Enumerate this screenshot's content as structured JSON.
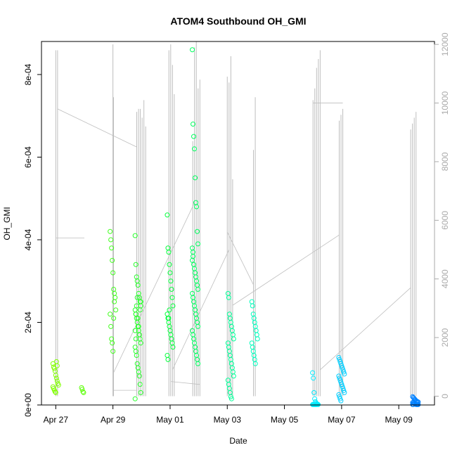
{
  "chart_data": {
    "type": "scatter",
    "title": "ATOM4 Southbound OH_GMI",
    "xlabel": "Date",
    "ylabel": "OH_GMI",
    "x_range": [
      "2018-04-26T12:00",
      "2018-05-10T06:00"
    ],
    "x_ticks": [
      {
        "date": "2018-04-27",
        "label": "Apr 27"
      },
      {
        "date": "2018-04-29",
        "label": "Apr 29"
      },
      {
        "date": "2018-05-01",
        "label": "May 01"
      },
      {
        "date": "2018-05-03",
        "label": "May 03"
      },
      {
        "date": "2018-05-05",
        "label": "May 05"
      },
      {
        "date": "2018-05-07",
        "label": "May 07"
      },
      {
        "date": "2018-05-09",
        "label": "May 09"
      }
    ],
    "ylim": [
      0,
      0.00088
    ],
    "y_ticks": [
      {
        "value": 0,
        "label": "0e+00"
      },
      {
        "value": 0.0002,
        "label": "2e-04"
      },
      {
        "value": 0.0004,
        "label": "4e-04"
      },
      {
        "value": 0.0006,
        "label": "6e-04"
      },
      {
        "value": 0.0008,
        "label": "8e-04"
      }
    ],
    "y2lim": [
      -300,
      12100
    ],
    "y2_ticks": [
      {
        "value": 0,
        "label": "0"
      },
      {
        "value": 2000,
        "label": "2000"
      },
      {
        "value": 4000,
        "label": "4000"
      },
      {
        "value": 6000,
        "label": "6000"
      },
      {
        "value": 8000,
        "label": "8000"
      },
      {
        "value": 10000,
        "label": "10000"
      },
      {
        "value": 12000,
        "label": "12000"
      }
    ],
    "secondary_line_color": "#bebebe",
    "point_color_scale": [
      "#80ff00",
      "#00ff40",
      "#00ffff",
      "#0080ff"
    ],
    "clusters": [
      {
        "date": "2018-04-27",
        "t": "2018-04-27T00:00",
        "values": [
          0.0001,
          9.2e-05,
          8.8e-05,
          8.2e-05,
          7.2e-05,
          6.5e-05,
          5.8e-05,
          5.2e-05,
          4.8e-05,
          4.4e-05,
          4e-05,
          3.6e-05,
          3.2e-05,
          3e-05,
          0.000105,
          9.5e-05
        ]
      },
      {
        "date": "2018-04-28",
        "t": "2018-04-28T00:00",
        "values": [
          4.2e-05,
          3.8e-05,
          3.2e-05,
          3e-05
        ]
      },
      {
        "date": "2018-04-29",
        "t": "2018-04-29T00:00",
        "values": [
          0.00042,
          0.0004,
          0.00038,
          0.00035,
          0.00032,
          0.00028,
          0.00027,
          0.00026,
          0.00023,
          0.00022,
          0.00019,
          0.00016,
          0.00015,
          0.00013,
          0.00021,
          0.00025
        ]
      },
      {
        "date": "2018-04-29",
        "t": "2018-04-29T21:00",
        "values": [
          0.00041,
          0.00034,
          0.00031,
          0.0003,
          0.00029,
          0.00027,
          0.00026,
          0.00025,
          0.00024,
          0.00023,
          0.00022,
          0.00021,
          0.0002,
          0.00019,
          0.00018,
          0.00017,
          0.00016,
          0.00015,
          0.00014,
          0.00013,
          0.00012,
          0.0001,
          9e-05,
          8e-05,
          7e-05,
          5e-05,
          3e-05,
          1.5e-05,
          0.00022,
          0.00024,
          0.00026,
          0.00021,
          0.00019,
          0.00017,
          0.00023,
          0.00025,
          0.00018,
          0.00016
        ]
      },
      {
        "date": "2018-05-01",
        "t": "2018-05-01T00:00",
        "values": [
          0.00046,
          0.00038,
          0.00037,
          0.00034,
          0.00032,
          0.0003,
          0.00028,
          0.00026,
          0.00024,
          0.00022,
          0.00021,
          0.0002,
          0.00019,
          0.00018,
          0.00017,
          0.00016,
          0.00015,
          0.00014,
          0.00012,
          0.00011,
          0.00021,
          0.00023
        ]
      },
      {
        "date": "2018-05-01",
        "t": "2018-05-01T21:00",
        "values": [
          0.00086,
          0.00068,
          0.00065,
          0.00062,
          0.00055,
          0.00049,
          0.00048,
          0.00042,
          0.00039,
          0.00038,
          0.00036,
          0.00034,
          0.00033,
          0.00032,
          0.00031,
          0.0003,
          0.00029,
          0.00028,
          0.00027,
          0.00026,
          0.00025,
          0.00024,
          0.00023,
          0.00022,
          0.00021,
          0.0002,
          0.00019,
          0.00018,
          0.00017,
          0.00016,
          0.00015,
          0.00014,
          0.00013,
          0.00012,
          0.00011,
          0.0001,
          0.00035,
          0.00037
        ]
      },
      {
        "date": "2018-05-03",
        "t": "2018-05-03T03:00",
        "values": [
          0.00027,
          0.00026,
          0.00022,
          0.00021,
          0.0002,
          0.00019,
          0.00018,
          0.00017,
          0.00016,
          0.00015,
          0.00014,
          0.00013,
          0.00012,
          0.00011,
          0.0001,
          9e-05,
          8e-05,
          7e-05,
          6e-05,
          5e-05,
          4e-05,
          3e-05,
          2e-05,
          1.5e-05
        ]
      },
      {
        "date": "2018-05-03",
        "t": "2018-05-03T23:00",
        "values": [
          0.00025,
          0.00024,
          0.00022,
          0.00021,
          0.0002,
          0.00019,
          0.00018,
          0.00017,
          0.00016,
          0.00015,
          0.00014,
          0.00013,
          0.00012,
          0.00011,
          0.0001
        ]
      },
      {
        "date": "2018-05-06",
        "t": "2018-05-06T02:00",
        "values": [
          7.8e-05,
          6.5e-05,
          3e-05,
          1.5e-05,
          8e-06,
          5e-06,
          3e-06,
          2e-06,
          1e-06,
          1e-06,
          1e-06,
          1e-06,
          1e-06,
          1e-06,
          1e-06,
          1e-06
        ]
      },
      {
        "date": "2018-05-07",
        "t": "2018-05-07T00:00",
        "values": [
          0.000115,
          0.00011,
          0.000105,
          0.0001,
          9.5e-05,
          9e-05,
          8.5e-05,
          8e-05,
          7.5e-05,
          7e-05,
          6.5e-05,
          6e-05,
          5.5e-05,
          5e-05,
          4.5e-05,
          4e-05,
          3.5e-05,
          3e-05,
          2.5e-05,
          2e-05,
          1.5e-05,
          1e-05
        ]
      },
      {
        "date": "2018-05-09",
        "t": "2018-05-09T14:00",
        "values": [
          2e-05,
          1.8e-05,
          1.6e-05,
          1.4e-05,
          1.2e-05,
          1e-05,
          9e-06,
          8e-06,
          7e-06,
          6e-06,
          5e-06,
          4e-06,
          3e-06,
          2e-06,
          1e-06,
          1e-06,
          1e-06,
          1e-06,
          1e-06,
          1e-06
        ]
      }
    ],
    "secondary_spikes": [
      {
        "t": "2018-04-27T00:00",
        "value": 11800
      },
      {
        "t": "2018-04-27T01:30",
        "value": 11800
      },
      {
        "t": "2018-04-29T00:00",
        "value": 12000
      },
      {
        "t": "2018-04-29T00:30",
        "value": 10200
      },
      {
        "t": "2018-04-29T20:00",
        "value": 9700
      },
      {
        "t": "2018-04-29T21:30",
        "value": 9800
      },
      {
        "t": "2018-04-29T23:00",
        "value": 9800
      },
      {
        "t": "2018-04-30T00:30",
        "value": 9500
      },
      {
        "t": "2018-04-30T02:00",
        "value": 10100
      },
      {
        "t": "2018-04-30T03:30",
        "value": 9200
      },
      {
        "t": "2018-04-30T23:00",
        "value": 11800
      },
      {
        "t": "2018-05-01T00:30",
        "value": 12000
      },
      {
        "t": "2018-05-01T02:00",
        "value": 11300
      },
      {
        "t": "2018-05-01T03:30",
        "value": 10300
      },
      {
        "t": "2018-05-01T19:00",
        "value": 8700
      },
      {
        "t": "2018-05-01T20:30",
        "value": 11900
      },
      {
        "t": "2018-05-01T22:00",
        "value": 12100
      },
      {
        "t": "2018-05-01T23:30",
        "value": 10500
      },
      {
        "t": "2018-05-02T01:00",
        "value": 10800
      },
      {
        "t": "2018-05-03T00:00",
        "value": 10900
      },
      {
        "t": "2018-05-03T01:30",
        "value": 10700
      },
      {
        "t": "2018-05-03T03:00",
        "value": 11600
      },
      {
        "t": "2018-05-03T04:30",
        "value": 7400
      },
      {
        "t": "2018-05-03T22:00",
        "value": 8400
      },
      {
        "t": "2018-05-03T23:30",
        "value": 10200
      },
      {
        "t": "2018-05-06T00:00",
        "value": 10100
      },
      {
        "t": "2018-05-06T01:30",
        "value": 10500
      },
      {
        "t": "2018-05-06T03:00",
        "value": 11200
      },
      {
        "t": "2018-05-06T04:30",
        "value": 11500
      },
      {
        "t": "2018-05-06T06:00",
        "value": 11800
      },
      {
        "t": "2018-05-06T22:00",
        "value": 9400
      },
      {
        "t": "2018-05-06T23:30",
        "value": 9600
      },
      {
        "t": "2018-05-07T01:00",
        "value": 9800
      },
      {
        "t": "2018-05-09T10:00",
        "value": 9100
      },
      {
        "t": "2018-05-09T11:30",
        "value": 9300
      },
      {
        "t": "2018-05-09T13:00",
        "value": 9500
      },
      {
        "t": "2018-05-09T14:30",
        "value": 9700
      }
    ],
    "secondary_transits": [
      {
        "t1": "2018-04-27T01:30",
        "v1": 9800,
        "t2": "2018-04-29T20:00",
        "v2": 8500
      },
      {
        "t1": "2018-04-27T00:00",
        "v1": 5400,
        "t2": "2018-04-28T00:00",
        "v2": 5400
      },
      {
        "t1": "2018-04-29T00:00",
        "v1": 200,
        "t2": "2018-04-29T20:00",
        "v2": 200
      },
      {
        "t1": "2018-04-29T00:30",
        "v1": 800,
        "t2": "2018-05-01T20:30",
        "v2": 6600
      },
      {
        "t1": "2018-05-01T00:30",
        "v1": 500,
        "t2": "2018-05-02T01:00",
        "v2": 400
      },
      {
        "t1": "2018-05-01T02:00",
        "v1": 900,
        "t2": "2018-05-03T01:30",
        "v2": 5000
      },
      {
        "t1": "2018-05-03T04:30",
        "v1": 3100,
        "t2": "2018-05-06T22:00",
        "v2": 5500
      },
      {
        "t1": "2018-05-03T00:00",
        "v1": 5600,
        "t2": "2018-05-03T22:00",
        "v2": 3800
      },
      {
        "t1": "2018-05-06T00:00",
        "v1": 10000,
        "t2": "2018-05-07T01:00",
        "v2": 10000
      },
      {
        "t1": "2018-05-06T06:00",
        "v1": 900,
        "t2": "2018-05-09T10:00",
        "v2": 3700
      }
    ]
  }
}
